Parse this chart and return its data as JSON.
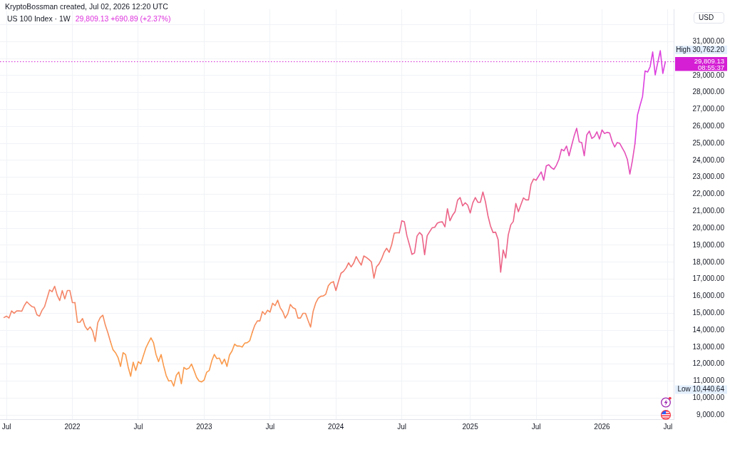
{
  "chart_data": {
    "type": "line",
    "title": "US 100 Index · 1W",
    "subtitle": "29,809.13 +690.89 (+2.37%)",
    "ylabel": "USD",
    "annotations": [
      "KryptoBossman created, Jul 02, 2026 12:20 UTC",
      "High 30,762.20",
      "Low 10,440.64",
      "08:55:37"
    ],
    "series": [
      {
        "color": "#f4866a",
        "x": [
          "2021-06-28",
          "2021-07-05",
          "2021-07-12",
          "2021-07-19",
          "2021-07-26",
          "2021-08-02",
          "2021-08-09",
          "2021-08-16",
          "2021-08-23",
          "2021-08-30",
          "2021-09-06",
          "2021-09-13",
          "2021-09-20",
          "2021-09-27",
          "2021-10-04",
          "2021-10-11",
          "2021-10-18",
          "2021-10-25",
          "2021-11-01",
          "2021-11-08",
          "2021-11-15",
          "2021-11-22",
          "2021-11-29",
          "2021-12-06",
          "2021-12-13",
          "2021-12-20",
          "2021-12-27",
          "2022-01-03",
          "2022-01-10"
        ],
        "values": [
          14740,
          14820,
          14710,
          15130,
          14990,
          15130,
          15130,
          15110,
          15440,
          15670,
          15520,
          15390,
          15340,
          14900,
          14820,
          15160,
          15380,
          15870,
          16370,
          16260,
          16580,
          16050,
          15740,
          16330,
          15840,
          16330,
          16330,
          15620,
          15620
        ]
      },
      {
        "color": "#f68d5e",
        "x": [
          "2022-01-10",
          "2022-01-17",
          "2022-01-24",
          "2022-01-31",
          "2022-02-07",
          "2022-02-14",
          "2022-02-21",
          "2022-02-28",
          "2022-03-07",
          "2022-03-14",
          "2022-03-21",
          "2022-03-28",
          "2022-04-04",
          "2022-04-11",
          "2022-04-18"
        ],
        "values": [
          15620,
          14460,
          14460,
          14680,
          14220,
          14010,
          14190,
          13940,
          13330,
          14430,
          14740,
          14880,
          14290,
          13840,
          13330
        ]
      },
      {
        "color": "#fa9a4c",
        "x": [
          "2022-04-18",
          "2022-04-25",
          "2022-05-02",
          "2022-05-09",
          "2022-05-16",
          "2022-05-23",
          "2022-05-30",
          "2022-06-06",
          "2022-06-13",
          "2022-06-20",
          "2022-06-27",
          "2022-07-04",
          "2022-07-11",
          "2022-07-18",
          "2022-07-25",
          "2022-08-01",
          "2022-08-08",
          "2022-08-15",
          "2022-08-22",
          "2022-08-29",
          "2022-09-05",
          "2022-09-12",
          "2022-09-19",
          "2022-09-26",
          "2022-10-03",
          "2022-10-10",
          "2022-10-17",
          "2022-10-24",
          "2022-10-31",
          "2022-11-07",
          "2022-11-14",
          "2022-11-21",
          "2022-11-28",
          "2022-12-05",
          "2022-12-12",
          "2022-12-19",
          "2022-12-26",
          "2023-01-02",
          "2023-01-09",
          "2023-01-16",
          "2023-01-23",
          "2023-01-30",
          "2023-02-06",
          "2023-02-13",
          "2023-02-20",
          "2023-02-27",
          "2023-03-06",
          "2023-03-13",
          "2023-03-20",
          "2023-03-27",
          "2023-04-03",
          "2023-04-10",
          "2023-04-17",
          "2023-04-24",
          "2023-05-01",
          "2023-05-08",
          "2023-05-15"
        ],
        "values": [
          13330,
          12850,
          12670,
          12390,
          11860,
          12670,
          12560,
          11830,
          11280,
          12110,
          11620,
          12140,
          12010,
          12490,
          12950,
          13260,
          13540,
          13260,
          12560,
          12140,
          12560,
          11900,
          11330,
          11000,
          11030,
          10700,
          11330,
          11530,
          10840,
          11800,
          11690,
          11760,
          12000,
          11620,
          11220,
          11000,
          10950,
          11060,
          11520,
          11620,
          12180,
          12570,
          12320,
          12350,
          12000,
          12290,
          11860,
          12530,
          12770,
          13170,
          13060,
          13060,
          13000,
          13230,
          13260,
          13380,
          13870
        ]
      },
      {
        "color": "#f78c5c",
        "x": [
          "2023-05-15",
          "2023-05-22",
          "2023-05-29",
          "2023-06-05",
          "2023-06-12",
          "2023-06-19",
          "2023-06-26",
          "2023-07-03",
          "2023-07-10",
          "2023-07-17",
          "2023-07-24",
          "2023-07-31",
          "2023-08-07",
          "2023-08-14",
          "2023-08-21",
          "2023-08-28",
          "2023-09-04",
          "2023-09-11",
          "2023-09-18",
          "2023-09-25",
          "2023-10-02",
          "2023-10-09",
          "2023-10-16",
          "2023-10-23",
          "2023-10-30",
          "2023-11-06",
          "2023-11-13",
          "2023-11-20",
          "2023-11-27",
          "2023-12-04",
          "2023-12-11",
          "2023-12-18",
          "2023-12-25"
        ],
        "values": [
          13870,
          14290,
          14540,
          14540,
          15090,
          14920,
          15170,
          15060,
          15580,
          15440,
          15760,
          15320,
          15090,
          14710,
          14960,
          15510,
          15320,
          15250,
          14710,
          14710,
          14990,
          14990,
          14570,
          14180,
          15100,
          15590,
          15870,
          15990,
          16010,
          16120,
          16610,
          16790,
          16850
        ]
      },
      {
        "color": "#f2776f",
        "x": [
          "2023-12-25",
          "2024-01-01",
          "2024-01-08",
          "2024-01-15",
          "2024-01-22",
          "2024-01-29",
          "2024-02-05",
          "2024-02-12",
          "2024-02-19",
          "2024-02-26",
          "2024-03-04",
          "2024-03-11",
          "2024-03-18",
          "2024-03-25",
          "2024-04-01",
          "2024-04-08",
          "2024-04-15",
          "2024-04-22",
          "2024-04-29",
          "2024-05-06",
          "2024-05-13",
          "2024-05-20",
          "2024-05-27",
          "2024-06-03",
          "2024-06-10",
          "2024-06-17",
          "2024-06-24"
        ],
        "values": [
          16850,
          16330,
          16870,
          17350,
          17460,
          17660,
          17960,
          17720,
          17950,
          18330,
          18060,
          17830,
          18370,
          18280,
          18160,
          18020,
          17060,
          17730,
          17900,
          18190,
          18580,
          18820,
          18580,
          19030,
          19710,
          19730,
          19730
        ]
      },
      {
        "color": "#ec6488",
        "x": [
          "2024-06-24",
          "2024-07-01",
          "2024-07-08",
          "2024-07-15",
          "2024-07-22",
          "2024-07-29",
          "2024-08-05",
          "2024-08-12",
          "2024-08-19",
          "2024-08-26",
          "2024-09-02",
          "2024-09-09",
          "2024-09-16",
          "2024-09-23",
          "2024-09-30",
          "2024-10-07",
          "2024-10-14",
          "2024-10-21",
          "2024-10-28",
          "2024-11-04",
          "2024-11-11",
          "2024-11-18",
          "2024-11-25",
          "2024-12-02",
          "2024-12-09",
          "2024-12-16",
          "2024-12-23",
          "2024-12-30",
          "2025-01-06",
          "2025-01-13",
          "2025-01-20",
          "2025-01-27",
          "2025-02-03",
          "2025-02-10",
          "2025-02-17",
          "2025-02-24",
          "2025-03-03",
          "2025-03-10",
          "2025-03-17",
          "2025-03-24",
          "2025-03-31",
          "2025-04-07",
          "2025-04-14",
          "2025-04-21",
          "2025-04-28",
          "2025-05-05",
          "2025-05-12",
          "2025-05-19",
          "2025-05-26",
          "2025-06-02",
          "2025-06-09",
          "2025-06-16",
          "2025-06-23",
          "2025-06-30",
          "2025-07-07"
        ],
        "values": [
          19730,
          20440,
          20380,
          19560,
          19030,
          18460,
          18540,
          19540,
          19750,
          19590,
          18440,
          19560,
          19800,
          20030,
          20060,
          20300,
          20360,
          20380,
          20080,
          21150,
          20440,
          20760,
          20970,
          21650,
          21810,
          21320,
          21500,
          21360,
          20900,
          21490,
          21810,
          21530,
          21530,
          22140,
          21560,
          20730,
          20130,
          19750,
          19770,
          19330,
          17410,
          18720,
          18250,
          19600,
          20200,
          20400,
          21460,
          20970,
          21390,
          21790,
          21670,
          21670,
          22590,
          22900,
          22830
        ]
      },
      {
        "color": "#e44fb9",
        "x": [
          "2025-07-07",
          "2025-07-14",
          "2025-07-21",
          "2025-07-28",
          "2025-08-04",
          "2025-08-11",
          "2025-08-18",
          "2025-08-25",
          "2025-09-01",
          "2025-09-08",
          "2025-09-15",
          "2025-09-22",
          "2025-09-29",
          "2025-10-06",
          "2025-10-13",
          "2025-10-20",
          "2025-10-27",
          "2025-11-03",
          "2025-11-10",
          "2025-11-17",
          "2025-11-24",
          "2025-12-01",
          "2025-12-08",
          "2025-12-15",
          "2025-12-22",
          "2025-12-29",
          "2026-01-05",
          "2026-01-12",
          "2026-01-19",
          "2026-01-26",
          "2026-02-02",
          "2026-02-09",
          "2026-02-16",
          "2026-02-23",
          "2026-03-02",
          "2026-03-09",
          "2026-03-16",
          "2026-03-23",
          "2026-03-30",
          "2026-04-06"
        ],
        "values": [
          22830,
          23080,
          23320,
          22830,
          23670,
          23740,
          23570,
          23470,
          23710,
          24060,
          24650,
          24560,
          24840,
          24270,
          24870,
          25430,
          25890,
          25090,
          25050,
          24270,
          25500,
          25720,
          25290,
          25400,
          25680,
          25260,
          25790,
          25580,
          25650,
          25610,
          25120,
          24790,
          25050,
          25000,
          24730,
          24460,
          24060,
          23190,
          23990,
          24980
        ]
      },
      {
        "color": "#dc40e0",
        "x": [
          "2026-04-06",
          "2026-04-13",
          "2026-04-20",
          "2026-04-27",
          "2026-05-04",
          "2026-05-11",
          "2026-05-18",
          "2026-05-25",
          "2026-06-01",
          "2026-06-08",
          "2026-06-15",
          "2026-06-22",
          "2026-06-29"
        ],
        "values": [
          24980,
          26670,
          27230,
          27760,
          29270,
          29200,
          29520,
          30390,
          29030,
          29760,
          30460,
          29120,
          29810
        ]
      }
    ],
    "xlim": [
      "2021-06-17",
      "2026-07-22"
    ],
    "xticks": [
      {
        "value": "2021-07-05",
        "label": "Jul"
      },
      {
        "value": "2022-01-03",
        "label": "2022"
      },
      {
        "value": "2022-07-04",
        "label": "Jul"
      },
      {
        "value": "2023-01-02",
        "label": "2023"
      },
      {
        "value": "2023-07-03",
        "label": "Jul"
      },
      {
        "value": "2024-01-01",
        "label": "2024"
      },
      {
        "value": "2024-07-01",
        "label": "Jul"
      },
      {
        "value": "2025-01-06",
        "label": "2025"
      },
      {
        "value": "2025-07-07",
        "label": "Jul"
      },
      {
        "value": "2026-01-05",
        "label": "2026"
      },
      {
        "value": "2026-07-06",
        "label": "Jul"
      }
    ],
    "ylim": [
      8750,
      32900
    ],
    "yticks": [
      {
        "value": 9000,
        "label": "9,000.00"
      },
      {
        "value": 10000,
        "label": "10,000.00"
      },
      {
        "value": 11000,
        "label": "11,000.00"
      },
      {
        "value": 12000,
        "label": "12,000.00"
      },
      {
        "value": 13000,
        "label": "13,000.00"
      },
      {
        "value": 14000,
        "label": "14,000.00"
      },
      {
        "value": 15000,
        "label": "15,000.00"
      },
      {
        "value": 16000,
        "label": "16,000.00"
      },
      {
        "value": 17000,
        "label": "17,000.00"
      },
      {
        "value": 18000,
        "label": "18,000.00"
      },
      {
        "value": 19000,
        "label": "19,000.00"
      },
      {
        "value": 20000,
        "label": "20,000.00"
      },
      {
        "value": 21000,
        "label": "21,000.00"
      },
      {
        "value": 22000,
        "label": "22,000.00"
      },
      {
        "value": 23000,
        "label": "23,000.00"
      },
      {
        "value": 24000,
        "label": "24,000.00"
      },
      {
        "value": 25000,
        "label": "25,000.00"
      },
      {
        "value": 26000,
        "label": "26,000.00"
      },
      {
        "value": 27000,
        "label": "27,000.00"
      },
      {
        "value": 28000,
        "label": "28,000.00"
      },
      {
        "value": 29000,
        "label": "29,000.00"
      },
      {
        "value": 30000,
        "label": null
      },
      {
        "value": 31000,
        "label": "31,000.00"
      },
      {
        "value": 32000,
        "label": null
      }
    ],
    "ref_lines": [
      {
        "axis": "y",
        "value": 29809.13,
        "label": "29,809.13",
        "color": "#d41fd4",
        "line_style": "dotted"
      }
    ],
    "grid": true,
    "marker": "none"
  }
}
